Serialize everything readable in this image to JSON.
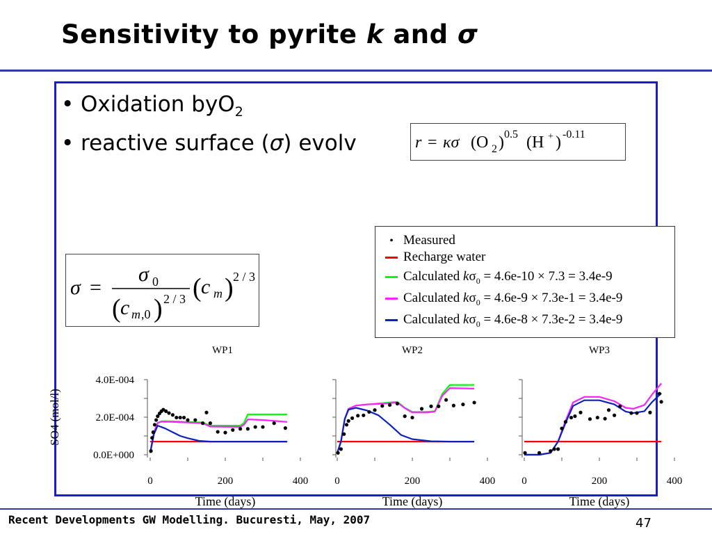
{
  "slide": {
    "title_prefix": "Sensitivity to pyrite ",
    "title_k": "k",
    "title_mid": " and ",
    "title_sigma": "σ",
    "bullets": [
      {
        "text": "Oxidation byO",
        "sub": "2"
      },
      {
        "text": "reactive surface (",
        "sigma": "σ",
        "rest": ") evolv"
      }
    ],
    "footer": "Recent Developments GW Modelling. Bucuresti, May, 2007",
    "page_number": "47"
  },
  "colors": {
    "accent_rule": "#2b3a9e",
    "frame": "#1a1acf",
    "recharge": "#ff0000",
    "calc1": "#00ff00",
    "calc2": "#ff22ff",
    "calc3": "#0a20c0",
    "measured": "#000000"
  },
  "equations": {
    "rate": "r = κσ (O₂)^0.5 (H⁺)^-0.11",
    "sigma": "σ = σ₀ / (c_m,0)^(2/3) · (c_m)^(2/3)"
  },
  "legend": {
    "measured": "Measured",
    "recharge": "Recharge water",
    "calc1": {
      "prefix": "Calculated ",
      "k": "k",
      "sigma": "σ",
      "sub": "0",
      "rest": " = 4.6e-10 × 7.3 = 3.4e-9"
    },
    "calc2": {
      "prefix": "Calculated ",
      "k": "k",
      "sigma": "σ",
      "sub": "0",
      "rest": " = 4.6e-9 × 7.3e-1 = 3.4e-9"
    },
    "calc3": {
      "prefix": "Calculated ",
      "k": "k",
      "sigma": "σ",
      "sub": "0",
      "rest": " = 4.6e-8 × 7.3e-2 = 3.4e-9"
    }
  },
  "chart_data": [
    {
      "type": "line",
      "title": "WP1",
      "xlabel": "Time (days)",
      "ylabel": "SO4 (mol/l)",
      "xlim": [
        0,
        400
      ],
      "ylim": [
        0,
        0.0004
      ],
      "x_ticks": [
        "0",
        "200",
        "400"
      ],
      "y_ticks": [
        "0.0E+000",
        "2.0E-004",
        "4.0E-004"
      ],
      "series": [
        {
          "name": "Recharge water",
          "color": "#ff0000",
          "x": [
            0,
            365
          ],
          "y": [
            7e-05,
            7e-05
          ]
        },
        {
          "name": "Calculated kσ0 = 4.6e-10 × 7.3 = 3.4e-9",
          "color": "#00ff00",
          "x": [
            0,
            10,
            20,
            30,
            60,
            100,
            140,
            160,
            240,
            250,
            260,
            300,
            365
          ],
          "y": [
            1e-05,
            0.00012,
            0.00017,
            0.000178,
            0.000178,
            0.000175,
            0.000172,
            0.000155,
            0.000155,
            0.00017,
            0.000215,
            0.000215,
            0.000215
          ]
        },
        {
          "name": "Calculated kσ0 = 4.6e-9 × 7.3e-1 = 3.4e-9",
          "color": "#ff22ff",
          "x": [
            0,
            10,
            20,
            30,
            60,
            100,
            140,
            160,
            240,
            250,
            260,
            300,
            365
          ],
          "y": [
            1e-05,
            0.00012,
            0.00017,
            0.000176,
            0.000175,
            0.000172,
            0.000168,
            0.00015,
            0.000148,
            0.00016,
            0.000188,
            0.000185,
            0.000175
          ]
        },
        {
          "name": "Calculated kσ0 = 4.6e-8 × 7.3e-2 = 3.4e-9",
          "color": "#0a20c0",
          "x": [
            0,
            10,
            20,
            40,
            60,
            80,
            100,
            130,
            160,
            200,
            250,
            365
          ],
          "y": [
            1e-05,
            0.00011,
            0.000155,
            0.00014,
            0.00012,
            0.0001,
            8.8e-05,
            7.4e-05,
            7e-05,
            7e-05,
            7e-05,
            7e-05
          ]
        },
        {
          "name": "Measured",
          "color": "#000000",
          "points": [
            [
              2,
              2e-05
            ],
            [
              5,
              9e-05
            ],
            [
              8,
              0.00012
            ],
            [
              12,
              0.00016
            ],
            [
              16,
              0.000185
            ],
            [
              20,
              0.000205
            ],
            [
              25,
              0.00022
            ],
            [
              30,
              0.000232
            ],
            [
              35,
              0.00024
            ],
            [
              42,
              0.000232
            ],
            [
              50,
              0.000222
            ],
            [
              60,
              0.000212
            ],
            [
              70,
              0.000198
            ],
            [
              80,
              0.000198
            ],
            [
              90,
              0.000198
            ],
            [
              100,
              0.000185
            ],
            [
              120,
              0.000185
            ],
            [
              140,
              0.000168
            ],
            [
              150,
              0.000225
            ],
            [
              160,
              0.000168
            ],
            [
              180,
              0.000122
            ],
            [
              200,
              0.000118
            ],
            [
              220,
              0.000132
            ],
            [
              240,
              0.000138
            ],
            [
              260,
              0.000138
            ],
            [
              280,
              0.000148
            ],
            [
              300,
              0.000148
            ],
            [
              330,
              0.000168
            ],
            [
              360,
              0.000142
            ]
          ]
        }
      ]
    },
    {
      "type": "line",
      "title": "WP2",
      "xlabel": "Time (days)",
      "xlim": [
        0,
        400
      ],
      "ylim": [
        0,
        0.0004
      ],
      "x_ticks": [
        "0",
        "200",
        "400"
      ],
      "series": [
        {
          "name": "Recharge water",
          "color": "#ff0000",
          "x": [
            0,
            365
          ],
          "y": [
            7e-05,
            7e-05
          ]
        },
        {
          "name": "Calculated kσ0 = 4.6e-10 × 7.3 = 3.4e-9",
          "color": "#00ff00",
          "x": [
            0,
            10,
            20,
            30,
            50,
            80,
            120,
            160,
            180,
            200,
            240,
            260,
            280,
            300,
            365
          ],
          "y": [
            1e-05,
            7e-05,
            0.00019,
            0.000245,
            0.000262,
            0.000268,
            0.000275,
            0.000282,
            0.00025,
            0.000228,
            0.000228,
            0.000232,
            0.000325,
            0.000372,
            0.000372
          ]
        },
        {
          "name": "Calculated kσ0 = 4.6e-9 × 7.3e-1 = 3.4e-9",
          "color": "#ff22ff",
          "x": [
            0,
            10,
            20,
            30,
            50,
            80,
            120,
            160,
            180,
            200,
            240,
            260,
            280,
            300,
            365
          ],
          "y": [
            1e-05,
            7e-05,
            0.00019,
            0.000245,
            0.000262,
            0.000268,
            0.000272,
            0.000278,
            0.000248,
            0.000225,
            0.000225,
            0.00023,
            0.000315,
            0.000355,
            0.000352
          ]
        },
        {
          "name": "Calculated kσ0 = 4.6e-8 × 7.3e-2 = 3.4e-9",
          "color": "#0a20c0",
          "x": [
            0,
            10,
            20,
            30,
            50,
            80,
            110,
            140,
            170,
            200,
            250,
            300,
            365
          ],
          "y": [
            1e-05,
            7e-05,
            0.00019,
            0.00024,
            0.00025,
            0.000235,
            0.00021,
            0.00016,
            0.000105,
            8.3e-05,
            7.2e-05,
            7e-05,
            7e-05
          ]
        },
        {
          "name": "Measured",
          "color": "#000000",
          "points": [
            [
              2,
              1e-05
            ],
            [
              10,
              3e-05
            ],
            [
              18,
              0.00011
            ],
            [
              25,
              0.00016
            ],
            [
              30,
              0.00018
            ],
            [
              40,
              0.000195
            ],
            [
              55,
              0.000208
            ],
            [
              70,
              0.00021
            ],
            [
              85,
              0.000228
            ],
            [
              100,
              0.000238
            ],
            [
              120,
              0.00026
            ],
            [
              140,
              0.000265
            ],
            [
              160,
              0.000272
            ],
            [
              180,
              0.000205
            ],
            [
              200,
              0.000198
            ],
            [
              225,
              0.000245
            ],
            [
              250,
              0.000258
            ],
            [
              270,
              0.000258
            ],
            [
              290,
              0.000292
            ],
            [
              310,
              0.000262
            ],
            [
              335,
              0.000268
            ],
            [
              365,
              0.000278
            ]
          ]
        }
      ]
    },
    {
      "type": "line",
      "title": "WP3",
      "xlabel": "Time (days)",
      "xlim": [
        0,
        400
      ],
      "ylim": [
        0,
        0.0004
      ],
      "x_ticks": [
        "0",
        "200",
        "400"
      ],
      "series": [
        {
          "name": "Recharge water",
          "color": "#ff0000",
          "x": [
            0,
            365
          ],
          "y": [
            7e-05,
            7e-05
          ]
        },
        {
          "name": "Calculated kσ0 = 4.6e-10 × 7.3 = 3.4e-9",
          "color": "#00ff00",
          "x": [
            0,
            40,
            70,
            90,
            110,
            130,
            160,
            200,
            240,
            270,
            290,
            320,
            340,
            365
          ],
          "y": [
            0.0,
            0.0,
            1e-05,
            7e-05,
            0.00018,
            0.000278,
            0.000308,
            0.000308,
            0.000285,
            0.00025,
            0.000245,
            0.000265,
            0.00032,
            0.00038
          ]
        },
        {
          "name": "Calculated kσ0 = 4.6e-9 × 7.3e-1 = 3.4e-9",
          "color": "#ff22ff",
          "x": [
            0,
            40,
            70,
            90,
            110,
            130,
            160,
            200,
            240,
            270,
            290,
            320,
            340,
            365
          ],
          "y": [
            0.0,
            0.0,
            1e-05,
            7e-05,
            0.00018,
            0.000278,
            0.000308,
            0.000308,
            0.000285,
            0.00025,
            0.000245,
            0.000265,
            0.00032,
            0.00038
          ]
        },
        {
          "name": "Calculated kσ0 = 4.6e-8 × 7.3e-2 = 3.4e-9",
          "color": "#0a20c0",
          "x": [
            0,
            40,
            70,
            90,
            110,
            130,
            160,
            200,
            240,
            270,
            290,
            320,
            340,
            365
          ],
          "y": [
            0.0,
            0.0,
            1e-05,
            7e-05,
            0.00017,
            0.00026,
            0.00029,
            0.00029,
            0.000268,
            0.00023,
            0.000222,
            0.000232,
            0.00028,
            0.000328
          ]
        },
        {
          "name": "Measured",
          "color": "#000000",
          "points": [
            [
              2,
              1e-05
            ],
            [
              40,
              1e-05
            ],
            [
              70,
              2e-05
            ],
            [
              80,
              3e-05
            ],
            [
              90,
              3e-05
            ],
            [
              100,
              0.00014
            ],
            [
              110,
              0.000175
            ],
            [
              125,
              0.000198
            ],
            [
              135,
              0.000205
            ],
            [
              150,
              0.000225
            ],
            [
              175,
              0.00019
            ],
            [
              195,
              0.000198
            ],
            [
              215,
              0.000192
            ],
            [
              225,
              0.000238
            ],
            [
              240,
              0.00021
            ],
            [
              255,
              0.000258
            ],
            [
              285,
              0.000222
            ],
            [
              300,
              0.000222
            ],
            [
              335,
              0.000225
            ],
            [
              360,
              0.000325
            ],
            [
              365,
              0.000282
            ]
          ]
        }
      ]
    }
  ]
}
